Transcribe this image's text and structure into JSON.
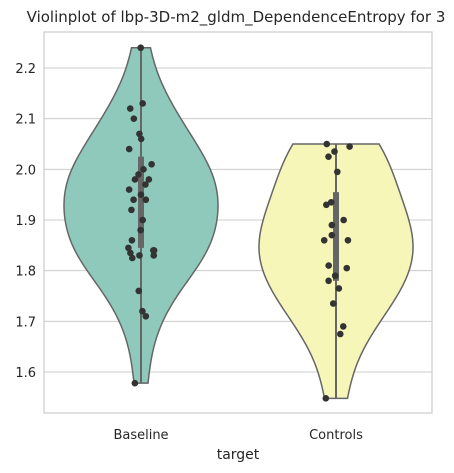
{
  "chart_data": {
    "type": "violin",
    "title": "Violinplot of lbp-3D-m2_gldm_DependenceEntropy for 3",
    "xlabel": "target",
    "ylabel": "",
    "ylim": [
      1.52,
      2.27
    ],
    "yticks": [
      1.6,
      1.7,
      1.8,
      1.9,
      2.0,
      2.1,
      2.2
    ],
    "grid": true,
    "categories": [
      "Baseline",
      "Controls"
    ],
    "colors": [
      "#8ec9bc",
      "#f7f6b9"
    ],
    "series": [
      {
        "category": "Baseline",
        "min": 1.578,
        "q1": 1.845,
        "median": 1.95,
        "q3": 2.025,
        "max": 2.24,
        "points": [
          2.24,
          2.13,
          2.12,
          2.1,
          2.07,
          2.06,
          2.04,
          2.01,
          2.0,
          1.99,
          1.98,
          1.98,
          1.97,
          1.96,
          1.95,
          1.94,
          1.94,
          1.92,
          1.9,
          1.88,
          1.86,
          1.845,
          1.84,
          1.84,
          1.835,
          1.83,
          1.83,
          1.825,
          1.76,
          1.72,
          1.71,
          1.578
        ]
      },
      {
        "category": "Controls",
        "min": 1.548,
        "q1": 1.78,
        "median": 1.86,
        "q3": 1.955,
        "max": 2.05,
        "points": [
          2.05,
          2.045,
          2.035,
          2.025,
          1.995,
          1.935,
          1.93,
          1.9,
          1.89,
          1.87,
          1.86,
          1.86,
          1.81,
          1.805,
          1.79,
          1.78,
          1.765,
          1.735,
          1.69,
          1.675,
          1.548
        ]
      }
    ]
  }
}
